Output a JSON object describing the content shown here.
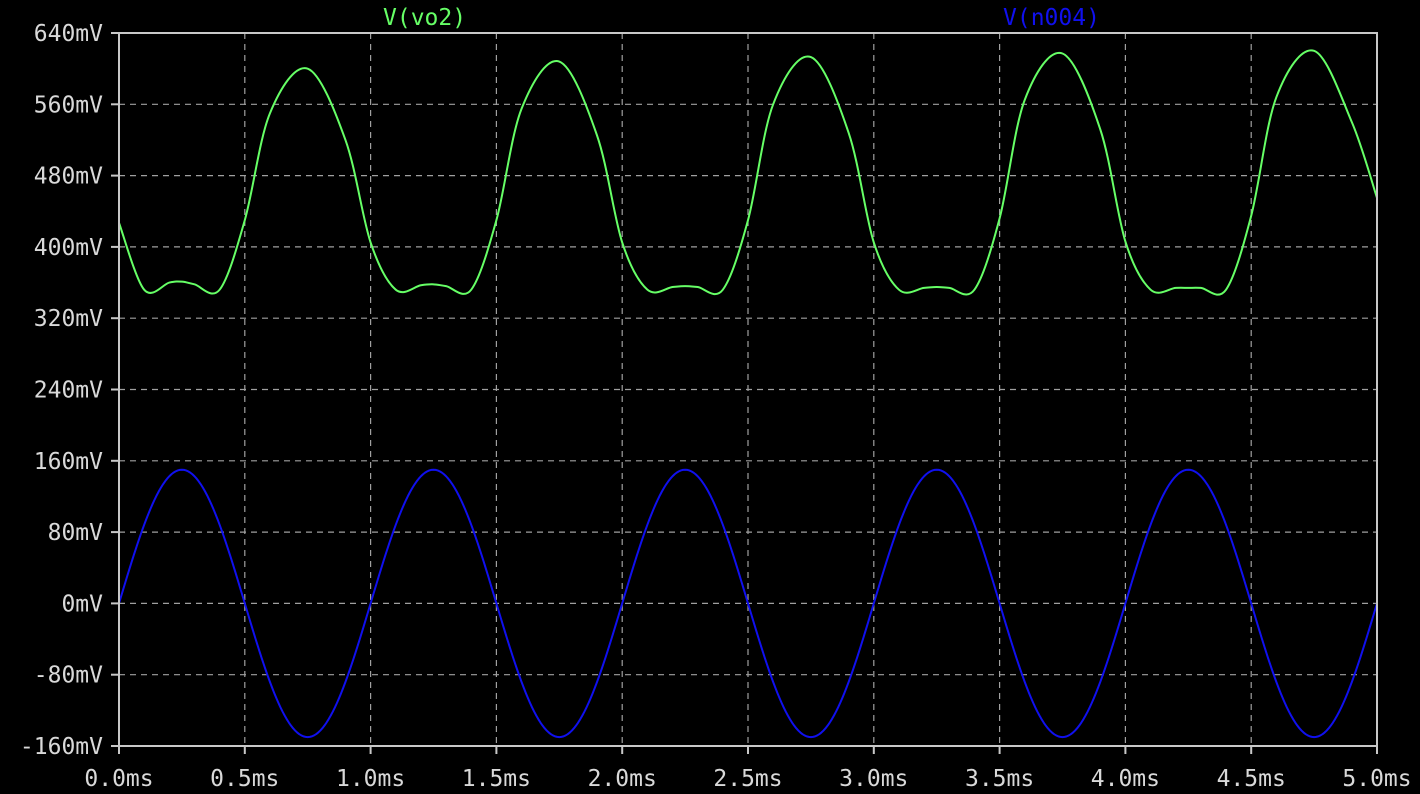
{
  "chart_data": {
    "type": "line",
    "title": "",
    "xlabel": "",
    "ylabel": "",
    "xlim": [
      0,
      5.0
    ],
    "ylim": [
      -160,
      640
    ],
    "grid": true,
    "legend_placement": "top",
    "x_ticks": [
      "0.0ms",
      "0.5ms",
      "1.0ms",
      "1.5ms",
      "2.0ms",
      "2.5ms",
      "3.0ms",
      "3.5ms",
      "4.0ms",
      "4.5ms",
      "5.0ms"
    ],
    "y_ticks": [
      "640mV",
      "560mV",
      "480mV",
      "400mV",
      "320mV",
      "240mV",
      "160mV",
      "80mV",
      "0mV",
      "-80mV",
      "-160mV"
    ],
    "series": [
      {
        "name": "V(vo2)",
        "color": "#66ff66",
        "x": [
          0.0,
          0.1,
          0.2,
          0.25,
          0.3,
          0.4,
          0.5,
          0.6,
          0.75,
          0.9,
          1.0,
          1.1,
          1.2,
          1.25,
          1.3,
          1.4,
          1.5,
          1.6,
          1.75,
          1.9,
          2.0,
          2.1,
          2.2,
          2.25,
          2.3,
          2.4,
          2.5,
          2.6,
          2.75,
          2.9,
          3.0,
          3.1,
          3.2,
          3.25,
          3.3,
          3.4,
          3.5,
          3.6,
          3.75,
          3.9,
          4.0,
          4.1,
          4.2,
          4.25,
          4.3,
          4.4,
          4.5,
          4.6,
          4.75,
          4.9,
          5.0
        ],
        "values": [
          427,
          352,
          360,
          361,
          358,
          352,
          430,
          550,
          600,
          520,
          405,
          352,
          357,
          358,
          356,
          352,
          430,
          555,
          608,
          525,
          405,
          352,
          355,
          356,
          355,
          352,
          430,
          560,
          613,
          528,
          405,
          352,
          354,
          355,
          354,
          352,
          432,
          565,
          617,
          532,
          406,
          352,
          354,
          354,
          354,
          352,
          435,
          568,
          620,
          540,
          455
        ]
      },
      {
        "name": "V(n004)",
        "color": "#1010ee",
        "amplitude": 150,
        "frequency_khz": 1,
        "x": [
          0.0,
          0.25,
          0.5,
          0.75,
          1.0,
          1.25,
          1.5,
          1.75,
          2.0,
          2.25,
          2.5,
          2.75,
          3.0,
          3.25,
          3.5,
          3.75,
          4.0,
          4.25,
          4.5,
          4.75,
          5.0
        ],
        "values": [
          0,
          150,
          0,
          -150,
          0,
          150,
          0,
          -150,
          0,
          150,
          0,
          -150,
          0,
          150,
          0,
          -150,
          0,
          150,
          0,
          -150,
          0
        ]
      }
    ]
  }
}
